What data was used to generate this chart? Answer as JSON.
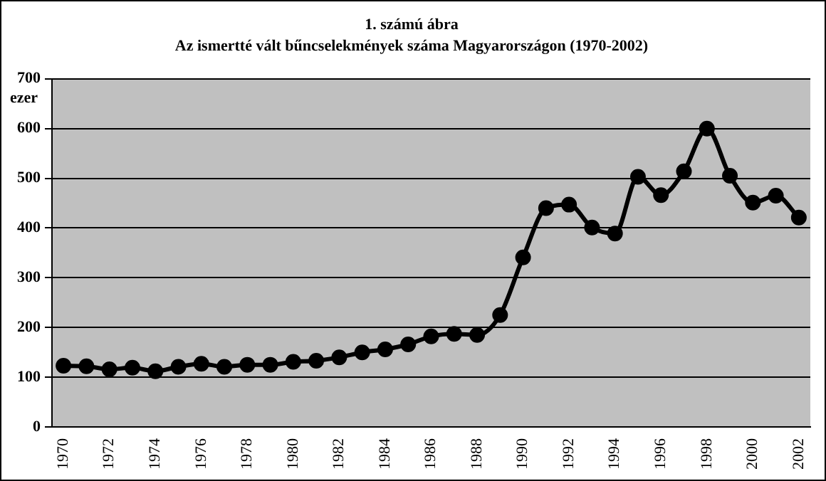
{
  "chart_data": {
    "type": "line",
    "title": "1. számú ábra",
    "subtitle": "Az ismertté vált bűncselekmények száma Magyarországon (1970-2002)",
    "ylabel": "ezer",
    "categories": [
      "1970",
      null,
      "1972",
      null,
      "1974",
      null,
      "1976",
      null,
      "1978",
      null,
      "1980",
      null,
      "1982",
      null,
      "1984",
      null,
      "1986",
      null,
      "1988",
      null,
      "1990",
      null,
      "1992",
      null,
      "1994",
      null,
      "1996",
      null,
      "1998",
      null,
      "2000",
      null,
      "2002"
    ],
    "series": [
      {
        "color": "#000000",
        "values": [
          123,
          122,
          116,
          119,
          112,
          121,
          127,
          121,
          125,
          125,
          131,
          133,
          140,
          150,
          156,
          166,
          182,
          187,
          185,
          225,
          341,
          440,
          447,
          401,
          389,
          503,
          466,
          514,
          600,
          505,
          451,
          465,
          421
        ]
      }
    ],
    "ylim": [
      0,
      700
    ],
    "yticks": [
      0,
      100,
      200,
      300,
      400,
      500,
      600,
      700
    ],
    "grid": "y",
    "legend": false,
    "marker": "circle",
    "line_style": "solid"
  }
}
